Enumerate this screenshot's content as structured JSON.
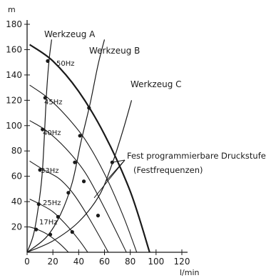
{
  "chart_data": {
    "type": "line",
    "title": "",
    "xlabel": "l/min",
    "ylabel": "m",
    "xlim": [
      0,
      120
    ],
    "ylim": [
      0,
      180
    ],
    "x_ticks": [
      0,
      20,
      40,
      60,
      80,
      100,
      120
    ],
    "y_ticks": [
      20,
      40,
      60,
      80,
      100,
      120,
      140,
      160,
      180
    ],
    "grid": false,
    "frequency_curves": [
      {
        "label": "50Hz",
        "values": [
          [
            2,
            164
          ],
          [
            20,
            151
          ],
          [
            40,
            127
          ],
          [
            60,
            93
          ],
          [
            80,
            48
          ],
          [
            95,
            0
          ]
        ]
      },
      {
        "label": "45Hz",
        "values": [
          [
            2,
            132
          ],
          [
            16,
            122
          ],
          [
            30,
            108
          ],
          [
            45,
            89
          ],
          [
            60,
            62
          ],
          [
            74,
            30
          ],
          [
            85,
            0
          ]
        ]
      },
      {
        "label": "40Hz",
        "values": [
          [
            2,
            104
          ],
          [
            15,
            96
          ],
          [
            30,
            82
          ],
          [
            45,
            63
          ],
          [
            60,
            35
          ],
          [
            77,
            0
          ]
        ]
      },
      {
        "label": "33Hz",
        "values": [
          [
            2,
            72
          ],
          [
            13,
            65
          ],
          [
            25,
            58
          ],
          [
            36,
            46
          ],
          [
            48,
            27
          ],
          [
            63,
            0
          ]
        ]
      },
      {
        "label": "25Hz",
        "values": [
          [
            2,
            42
          ],
          [
            10,
            38
          ],
          [
            20,
            32
          ],
          [
            30,
            22
          ],
          [
            40,
            10
          ],
          [
            47,
            0
          ]
        ]
      },
      {
        "label": "17Hz",
        "values": [
          [
            2,
            20
          ],
          [
            8,
            18
          ],
          [
            16,
            14
          ],
          [
            25,
            7
          ],
          [
            32,
            0
          ]
        ]
      }
    ],
    "tool_curves": [
      {
        "label": "Werkzeug A",
        "values": [
          [
            0,
            0
          ],
          [
            5,
            14
          ],
          [
            9,
            38
          ],
          [
            12,
            66
          ],
          [
            15,
            124
          ],
          [
            17,
            151
          ],
          [
            19,
            168
          ]
        ]
      },
      {
        "label": "Werkzeug B",
        "values": [
          [
            0,
            0
          ],
          [
            15,
            12
          ],
          [
            26,
            30
          ],
          [
            35,
            55
          ],
          [
            42,
            88
          ],
          [
            49,
            118
          ],
          [
            55,
            148
          ],
          [
            60,
            168
          ]
        ]
      },
      {
        "label": "Werkzeug C",
        "values": [
          [
            0,
            0
          ],
          [
            20,
            9
          ],
          [
            40,
            24
          ],
          [
            56,
            45
          ],
          [
            66,
            70
          ],
          [
            74,
            95
          ],
          [
            81,
            120
          ]
        ]
      }
    ],
    "operating_points": [
      {
        "x": 16,
        "y": 151
      },
      {
        "x": 48,
        "y": 114
      },
      {
        "x": 14,
        "y": 122
      },
      {
        "x": 41,
        "y": 92
      },
      {
        "x": 12,
        "y": 97
      },
      {
        "x": 37,
        "y": 71
      },
      {
        "x": 10,
        "y": 65
      },
      {
        "x": 32,
        "y": 47
      },
      {
        "x": 55,
        "y": 29
      },
      {
        "x": 9,
        "y": 38
      },
      {
        "x": 24,
        "y": 28
      },
      {
        "x": 44,
        "y": 56
      },
      {
        "x": 7,
        "y": 18
      },
      {
        "x": 18,
        "y": 14
      },
      {
        "x": 35,
        "y": 16
      },
      {
        "x": 66,
        "y": 71
      }
    ],
    "annotation": {
      "line1": "Fest programmierbare Druckstufen",
      "line2": "(Festfrequenzen)",
      "targets": [
        {
          "x": 66,
          "y": 71
        },
        {
          "x": 61,
          "y": 56
        },
        {
          "x": 52,
          "y": 43
        }
      ]
    }
  }
}
